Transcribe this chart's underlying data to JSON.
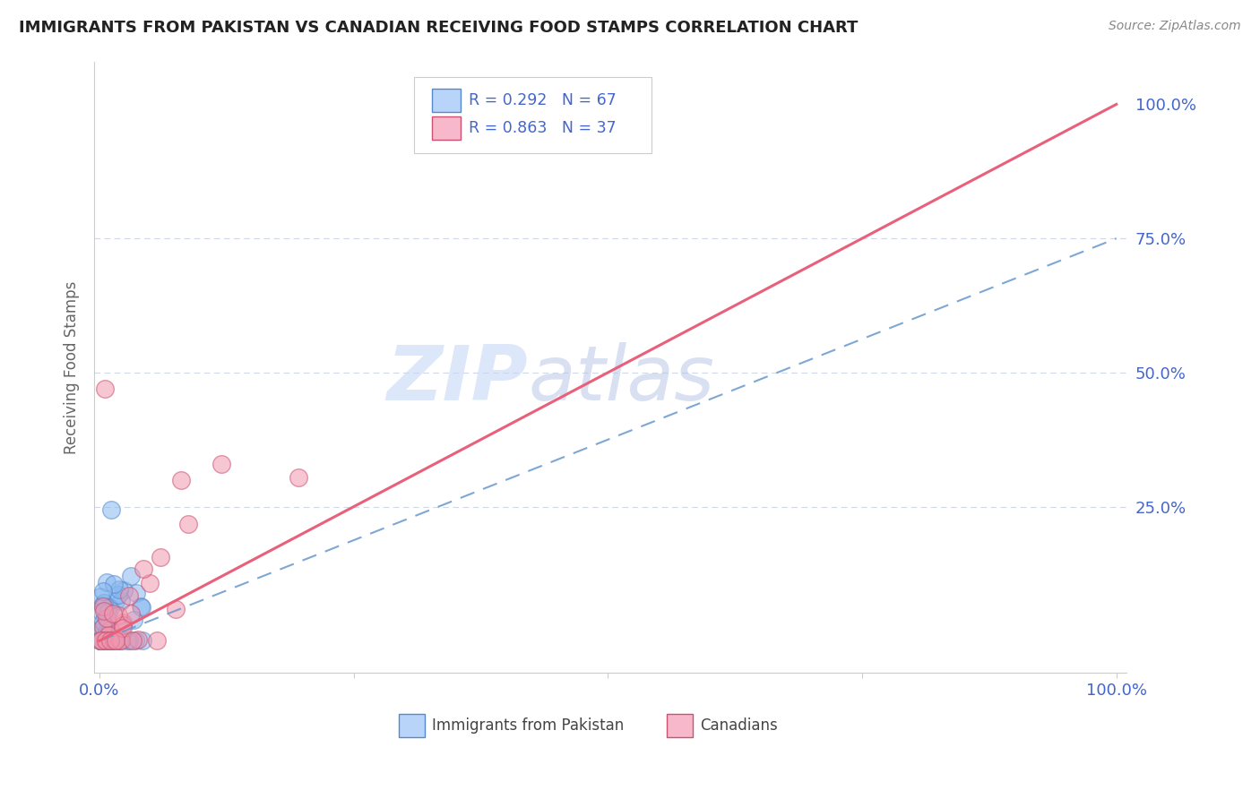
{
  "title": "IMMIGRANTS FROM PAKISTAN VS CANADIAN RECEIVING FOOD STAMPS CORRELATION CHART",
  "source": "Source: ZipAtlas.com",
  "ylabel": "Receiving Food Stamps",
  "background_color": "#ffffff",
  "plot_bg_color": "#ffffff",
  "grid_color": "#d0d8e8",
  "watermark_zip": "ZIP",
  "watermark_atlas": "atlas",
  "legend_color1": "#b8d4f8",
  "legend_color2": "#f8b8cc",
  "dot_color1": "#88b8f0",
  "dot_color2": "#f098b0",
  "line_color1": "#6898cc",
  "line_color2": "#e8607a",
  "dot_edge1": "#5588cc",
  "dot_edge2": "#cc5070",
  "R1": 0.292,
  "N1": 67,
  "R2": 0.863,
  "N2": 37,
  "blue_slope": 0.75,
  "pink_slope": 1.0,
  "title_color": "#222222",
  "source_color": "#888888",
  "tick_color": "#4466cc",
  "ylabel_color": "#666666"
}
